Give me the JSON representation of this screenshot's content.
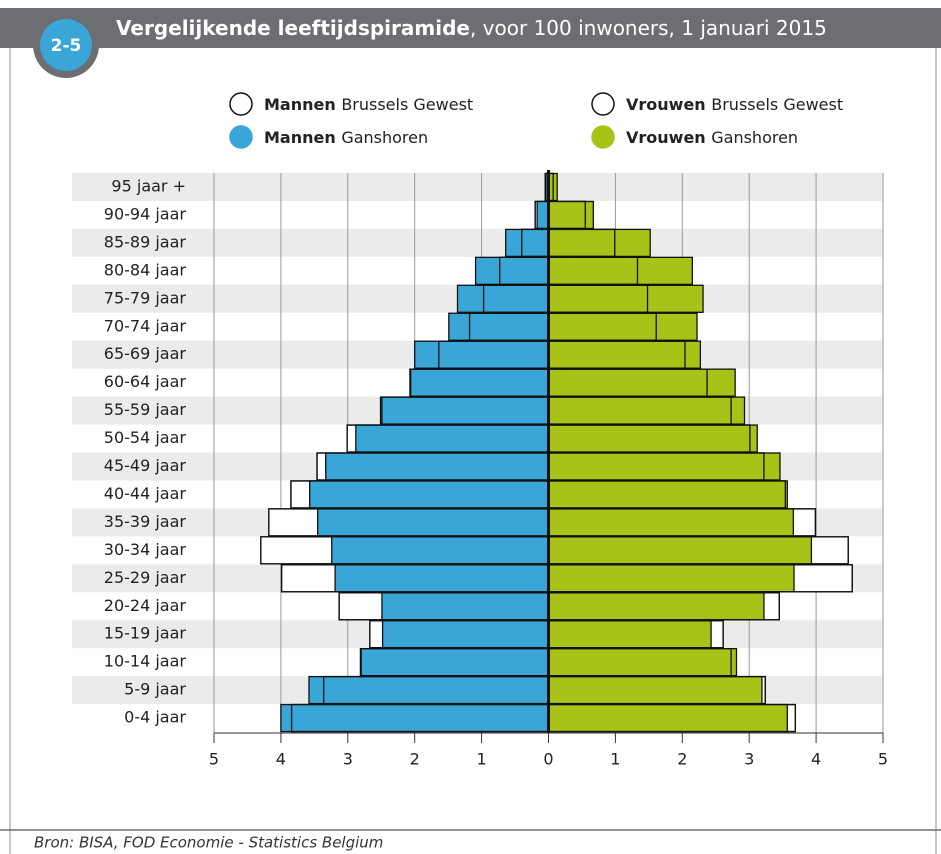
{
  "badge": "2-5",
  "chart_data": {
    "type": "pyramid",
    "title": "Vergelijkende leeftijdspiramide",
    "subtitle": ", voor 100 inwoners, 1 januari 2015",
    "categories": [
      "95 jaar +",
      "90-94 jaar",
      "85-89 jaar",
      "80-84 jaar",
      "75-79 jaar",
      "70-74 jaar",
      "65-69 jaar",
      "60-64 jaar",
      "55-59 jaar",
      "50-54 jaar",
      "45-49 jaar",
      "40-44 jaar",
      "35-39 jaar",
      "30-34 jaar",
      "25-29 jaar",
      "20-24 jaar",
      "15-19 jaar",
      "10-14 jaar",
      "5-9 jaar",
      "0-4 jaar"
    ],
    "series": [
      {
        "name": "Mannen Brussels Gewest",
        "color": "#ffffff",
        "values": [
          -0.05,
          -0.2,
          -0.4,
          -0.73,
          -0.97,
          -1.18,
          -1.64,
          -2.07,
          -2.51,
          -3.01,
          -3.46,
          -3.85,
          -4.18,
          -4.3,
          -3.99,
          -3.13,
          -2.67,
          -2.81,
          -3.36,
          -3.84
        ]
      },
      {
        "name": "Mannen Ganshoren",
        "color": "#3aa6d8",
        "values": [
          -0.04,
          -0.17,
          -0.64,
          -1.09,
          -1.36,
          -1.49,
          -2.0,
          -2.06,
          -2.49,
          -2.88,
          -3.33,
          -3.57,
          -3.45,
          -3.24,
          -3.19,
          -2.49,
          -2.48,
          -2.8,
          -3.58,
          -4.0
        ]
      },
      {
        "name": "Vrouwen Brussels Gewest",
        "color": "#ffffff",
        "values": [
          0.07,
          0.55,
          0.99,
          1.33,
          1.48,
          1.61,
          2.04,
          2.37,
          2.73,
          3.01,
          3.22,
          3.54,
          3.99,
          4.48,
          4.54,
          3.45,
          2.61,
          2.73,
          3.24,
          3.69
        ]
      },
      {
        "name": "Vrouwen Ganshoren",
        "color": "#a8c218",
        "values": [
          0.13,
          0.67,
          1.52,
          2.15,
          2.31,
          2.22,
          2.27,
          2.79,
          2.93,
          3.12,
          3.46,
          3.57,
          3.66,
          3.93,
          3.67,
          3.22,
          2.43,
          2.81,
          3.19,
          3.57
        ]
      }
    ],
    "xlim": [
      -5,
      5
    ],
    "xticks": [
      {
        "value": -5,
        "label": "5"
      },
      {
        "value": -4,
        "label": "4"
      },
      {
        "value": -3,
        "label": "3"
      },
      {
        "value": -2,
        "label": "2"
      },
      {
        "value": -1,
        "label": "1"
      },
      0,
      1,
      2,
      3,
      4,
      5
    ],
    "grid": true
  },
  "source": "Bron: BISA, FOD Economie - Statistics Belgium"
}
